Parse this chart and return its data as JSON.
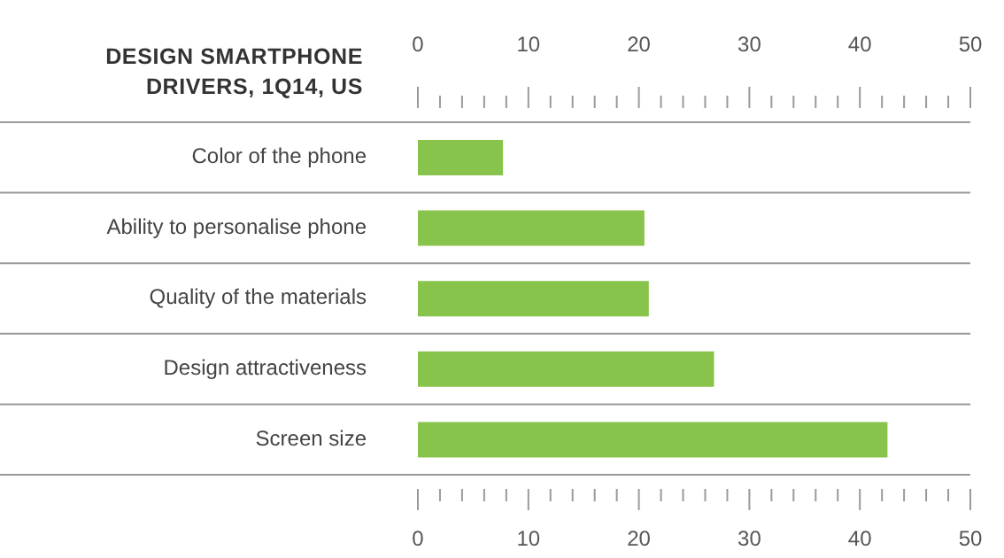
{
  "chart_data": {
    "type": "bar",
    "orientation": "horizontal",
    "title": "DESIGN SMARTPHONE\nDRIVERS, 1Q14, US",
    "categories": [
      "Color of the phone",
      "Ability to personalise phone",
      "Quality of the materials",
      "Design attractiveness",
      "Screen size"
    ],
    "values": [
      7.7,
      20.5,
      20.9,
      26.8,
      42.5
    ],
    "color": "#88c34c",
    "xlim": [
      0,
      50
    ],
    "xticks": [
      0,
      {
        "value": 2,
        "label": null
      },
      {
        "value": 4,
        "label": null
      },
      {
        "value": 6,
        "label": null
      },
      {
        "value": 8,
        "label": null
      },
      10,
      {
        "value": 12,
        "label": null
      },
      {
        "value": 14,
        "label": null
      },
      {
        "value": 16,
        "label": null
      },
      {
        "value": 18,
        "label": null
      },
      20,
      {
        "value": 22,
        "label": null
      },
      {
        "value": 24,
        "label": null
      },
      {
        "value": 26,
        "label": null
      },
      {
        "value": 28,
        "label": null
      },
      30,
      {
        "value": 32,
        "label": null
      },
      {
        "value": 34,
        "label": null
      },
      {
        "value": 36,
        "label": null
      },
      {
        "value": 38,
        "label": null
      },
      40,
      {
        "value": 42,
        "label": null
      },
      {
        "value": 44,
        "label": null
      },
      {
        "value": 46,
        "label": null
      },
      {
        "value": 48,
        "label": null
      },
      50
    ],
    "x2lim": [
      0,
      50
    ],
    "x2ticks": [
      0,
      {
        "value": 2,
        "label": null
      },
      {
        "value": 4,
        "label": null
      },
      {
        "value": 6,
        "label": null
      },
      {
        "value": 8,
        "label": null
      },
      10,
      {
        "value": 12,
        "label": null
      },
      {
        "value": 14,
        "label": null
      },
      {
        "value": 16,
        "label": null
      },
      {
        "value": 18,
        "label": null
      },
      20,
      {
        "value": 22,
        "label": null
      },
      {
        "value": 24,
        "label": null
      },
      {
        "value": 26,
        "label": null
      },
      {
        "value": 28,
        "label": null
      },
      30,
      {
        "value": 32,
        "label": null
      },
      {
        "value": 34,
        "label": null
      },
      {
        "value": 36,
        "label": null
      },
      {
        "value": 38,
        "label": null
      },
      40,
      {
        "value": 42,
        "label": null
      },
      {
        "value": 44,
        "label": null
      },
      {
        "value": 46,
        "label": null
      },
      {
        "value": 48,
        "label": null
      },
      50
    ],
    "grid": "y"
  }
}
